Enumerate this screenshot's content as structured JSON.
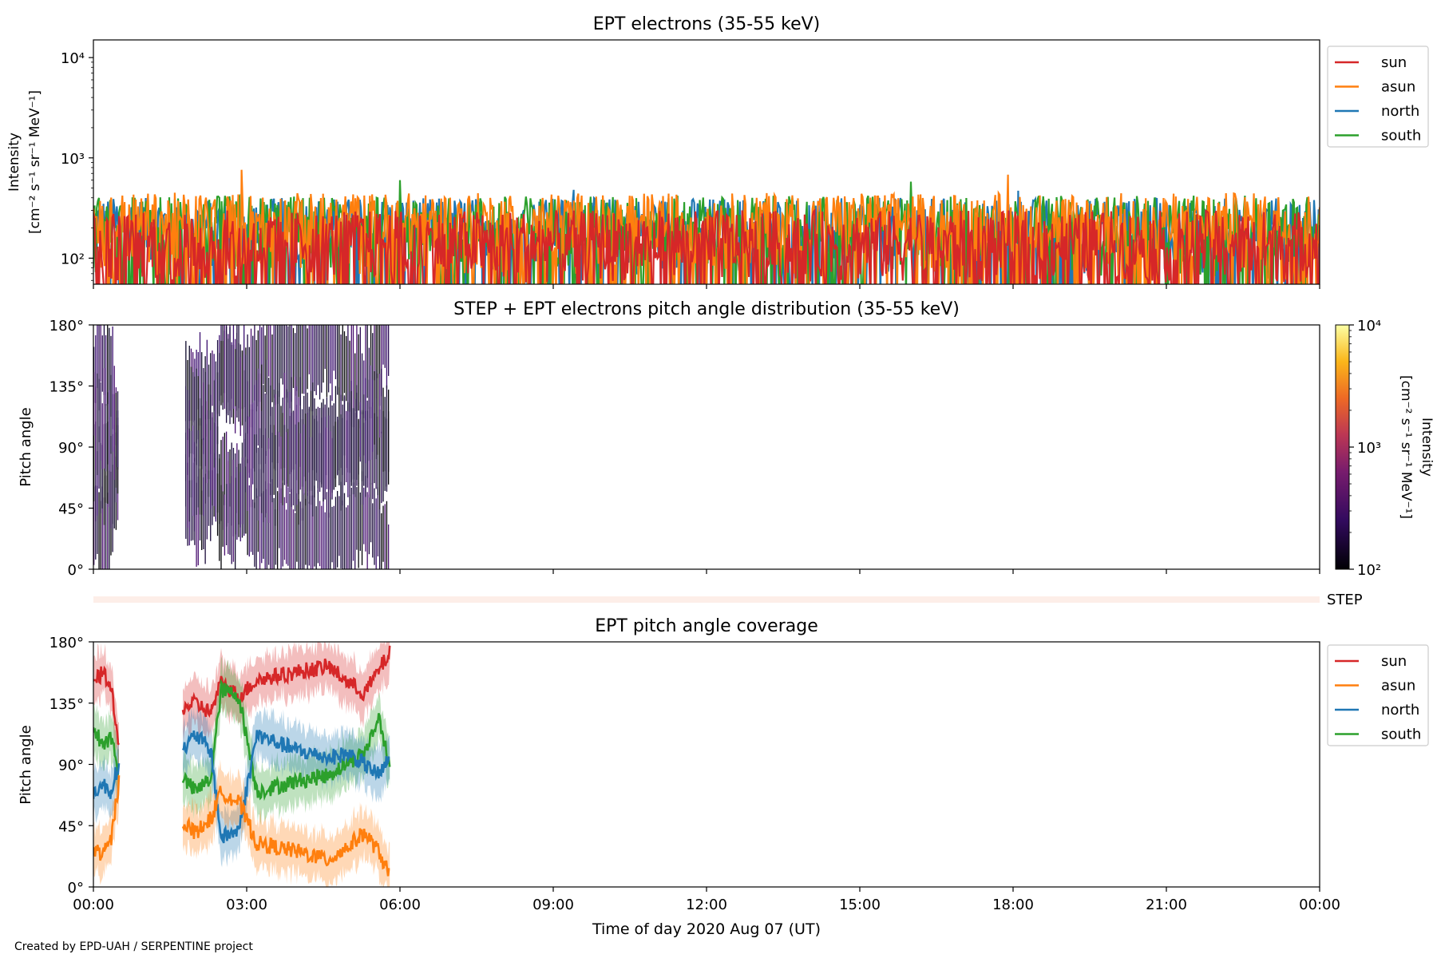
{
  "figure": {
    "credit": "Created by EPD-UAH / SERPENTINE project",
    "xlabel": "Time of day 2020 Aug 07 (UT)",
    "xticks": [
      "00:00",
      "03:00",
      "06:00",
      "09:00",
      "12:00",
      "15:00",
      "18:00",
      "21:00",
      "00:00"
    ]
  },
  "chart_data": [
    {
      "type": "line",
      "title": "EPT electrons (35-55 keV)",
      "ylabel_lines": [
        "Intensity",
        "[cm⁻² s⁻¹ sr⁻¹ MeV⁻¹]"
      ],
      "yscale": "log",
      "ylim": [
        55,
        15000
      ],
      "yticks": [
        {
          "value": 100,
          "label": "10²"
        },
        {
          "value": 1000,
          "label": "10³"
        },
        {
          "value": 10000,
          "label": "10⁴"
        }
      ],
      "xlim_hours": [
        0,
        24
      ],
      "legend_position": "outside-right",
      "series": [
        {
          "name": "north",
          "color": "#1f77b4",
          "typical_range": [
            60,
            400
          ],
          "notable_peaks": [
            {
              "t": 9.4,
              "v": 480
            },
            {
              "t": 18.1,
              "v": 470
            }
          ]
        },
        {
          "name": "south",
          "color": "#2ca02c",
          "typical_range": [
            60,
            420
          ],
          "notable_peaks": [
            {
              "t": 6.0,
              "v": 600
            },
            {
              "t": 16.0,
              "v": 580
            }
          ]
        },
        {
          "name": "asun",
          "color": "#ff7f0e",
          "typical_range": [
            60,
            450
          ],
          "notable_peaks": [
            {
              "t": 2.9,
              "v": 760
            },
            {
              "t": 17.9,
              "v": 680
            }
          ]
        },
        {
          "name": "sun",
          "color": "#d62728",
          "typical_range": [
            55,
            300
          ],
          "notable_peaks": []
        }
      ],
      "legend_order": [
        "sun",
        "asun",
        "north",
        "south"
      ]
    },
    {
      "type": "heatmap",
      "title": "STEP + EPT electrons pitch angle distribution (35-55 keV)",
      "ylabel": "Pitch angle",
      "ylim": [
        0,
        180
      ],
      "yticks": [
        "0°",
        "45°",
        "90°",
        "135°",
        "180°"
      ],
      "xlim_hours": [
        0,
        24
      ],
      "data_intervals_hours": [
        [
          0.0,
          0.5
        ],
        [
          1.8,
          5.8
        ]
      ],
      "colorbar": {
        "label_lines": [
          "Intensity",
          "[cm⁻² s⁻¹ sr⁻¹ MeV⁻¹]"
        ],
        "scale": "log",
        "range": [
          100,
          10000
        ],
        "ticks": [
          "10²",
          "10³",
          "10⁴"
        ],
        "colormap": "inferno"
      }
    },
    {
      "type": "bar",
      "label": "STEP",
      "color": "#fdeee8"
    },
    {
      "type": "line",
      "title": "EPT pitch angle coverage",
      "ylabel": "Pitch angle",
      "ylim": [
        0,
        180
      ],
      "yticks": [
        "0°",
        "45°",
        "90°",
        "135°",
        "180°"
      ],
      "xlim_hours": [
        0,
        24
      ],
      "legend_position": "outside-right",
      "segments_hours": [
        [
          0.0,
          0.5
        ],
        [
          1.75,
          5.8
        ]
      ],
      "series": [
        {
          "name": "sun",
          "color": "#d62728",
          "knots": [
            [
              0.0,
              150
            ],
            [
              0.2,
              158
            ],
            [
              0.35,
              145
            ],
            [
              0.5,
              100
            ],
            [
              1.75,
              132
            ],
            [
              2.0,
              135
            ],
            [
              2.3,
              128
            ],
            [
              2.5,
              150
            ],
            [
              2.85,
              140
            ],
            [
              3.2,
              152
            ],
            [
              4.0,
              158
            ],
            [
              4.6,
              162
            ],
            [
              5.0,
              150
            ],
            [
              5.3,
              142
            ],
            [
              5.6,
              160
            ],
            [
              5.8,
              172
            ]
          ]
        },
        {
          "name": "asun",
          "color": "#ff7f0e",
          "knots": [
            [
              0.0,
              28
            ],
            [
              0.2,
              24
            ],
            [
              0.35,
              35
            ],
            [
              0.5,
              78
            ],
            [
              1.75,
              48
            ],
            [
              2.0,
              40
            ],
            [
              2.3,
              50
            ],
            [
              2.5,
              70
            ],
            [
              2.85,
              62
            ],
            [
              3.2,
              32
            ],
            [
              4.0,
              26
            ],
            [
              4.6,
              20
            ],
            [
              5.0,
              30
            ],
            [
              5.3,
              40
            ],
            [
              5.6,
              25
            ],
            [
              5.8,
              8
            ]
          ]
        },
        {
          "name": "north",
          "color": "#1f77b4",
          "knots": [
            [
              0.0,
              70
            ],
            [
              0.2,
              75
            ],
            [
              0.35,
              70
            ],
            [
              0.5,
              92
            ],
            [
              1.75,
              100
            ],
            [
              2.0,
              112
            ],
            [
              2.3,
              100
            ],
            [
              2.5,
              36
            ],
            [
              2.85,
              42
            ],
            [
              3.2,
              112
            ],
            [
              4.0,
              100
            ],
            [
              4.6,
              95
            ],
            [
              5.0,
              98
            ],
            [
              5.3,
              90
            ],
            [
              5.6,
              82
            ],
            [
              5.8,
              95
            ]
          ]
        },
        {
          "name": "south",
          "color": "#2ca02c",
          "knots": [
            [
              0.0,
              115
            ],
            [
              0.2,
              105
            ],
            [
              0.35,
              110
            ],
            [
              0.5,
              85
            ],
            [
              1.75,
              80
            ],
            [
              2.0,
              70
            ],
            [
              2.3,
              80
            ],
            [
              2.5,
              145
            ],
            [
              2.85,
              140
            ],
            [
              3.2,
              70
            ],
            [
              4.0,
              78
            ],
            [
              4.6,
              82
            ],
            [
              5.0,
              92
            ],
            [
              5.3,
              98
            ],
            [
              5.6,
              125
            ],
            [
              5.8,
              85
            ]
          ]
        }
      ],
      "legend_order": [
        "sun",
        "asun",
        "north",
        "south"
      ]
    }
  ]
}
